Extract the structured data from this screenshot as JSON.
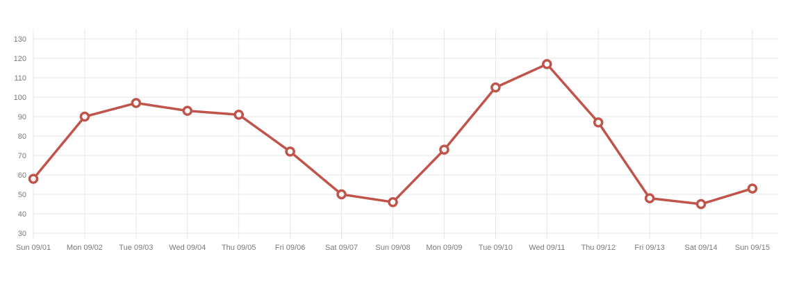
{
  "chart_data": {
    "type": "line",
    "title": "",
    "xlabel": "",
    "ylabel": "",
    "categories": [
      "Sun 09/01",
      "Mon 09/02",
      "Tue 09/03",
      "Wed 09/04",
      "Thu 09/05",
      "Fri 09/06",
      "Sat 09/07",
      "Sun 09/08",
      "Mon 09/09",
      "Tue 09/10",
      "Wed 09/11",
      "Thu 09/12",
      "Fri 09/13",
      "Sat 09/14",
      "Sun 09/15"
    ],
    "series": [
      {
        "values": [
          58,
          90,
          97,
          93,
          91,
          72,
          50,
          46,
          73,
          105,
          117,
          87,
          48,
          45,
          53
        ],
        "color": "#c0544a"
      }
    ],
    "ylim": [
      30,
      130
    ],
    "yticks": [
      30,
      40,
      50,
      60,
      70,
      80,
      90,
      100,
      110,
      120,
      130
    ],
    "grid": true,
    "legend": "none"
  }
}
